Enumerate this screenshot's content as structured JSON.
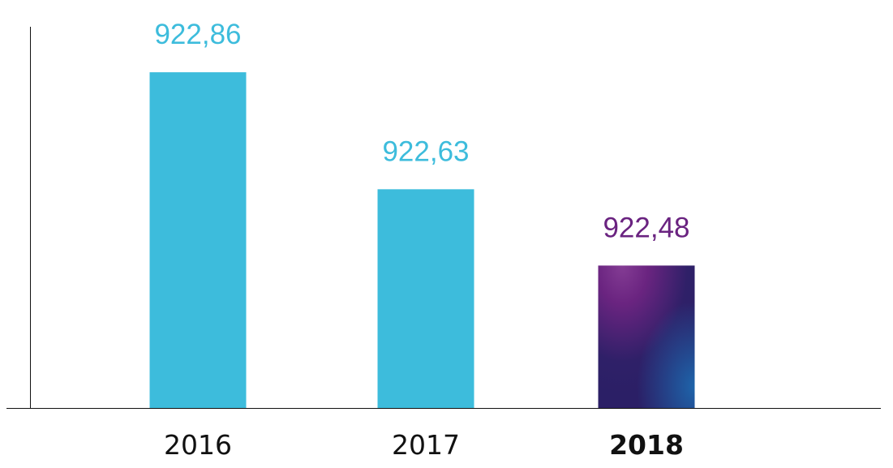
{
  "chart_data": {
    "type": "bar",
    "title": "",
    "xlabel": "",
    "ylabel": "",
    "categories": [
      "2016",
      "2017",
      "2018"
    ],
    "values": [
      922.86,
      922.63,
      922.48
    ],
    "value_labels": [
      "922,86",
      "922,63",
      "922,48"
    ],
    "ylim": [
      922.2,
      922.9
    ],
    "grid": false,
    "highlight_index": 2,
    "colors": {
      "bar": "#3dbcdc",
      "highlight_label": "#6a2380",
      "highlight_gradient": [
        "#7a3590",
        "#2e2068",
        "#1e5fa8"
      ]
    }
  }
}
